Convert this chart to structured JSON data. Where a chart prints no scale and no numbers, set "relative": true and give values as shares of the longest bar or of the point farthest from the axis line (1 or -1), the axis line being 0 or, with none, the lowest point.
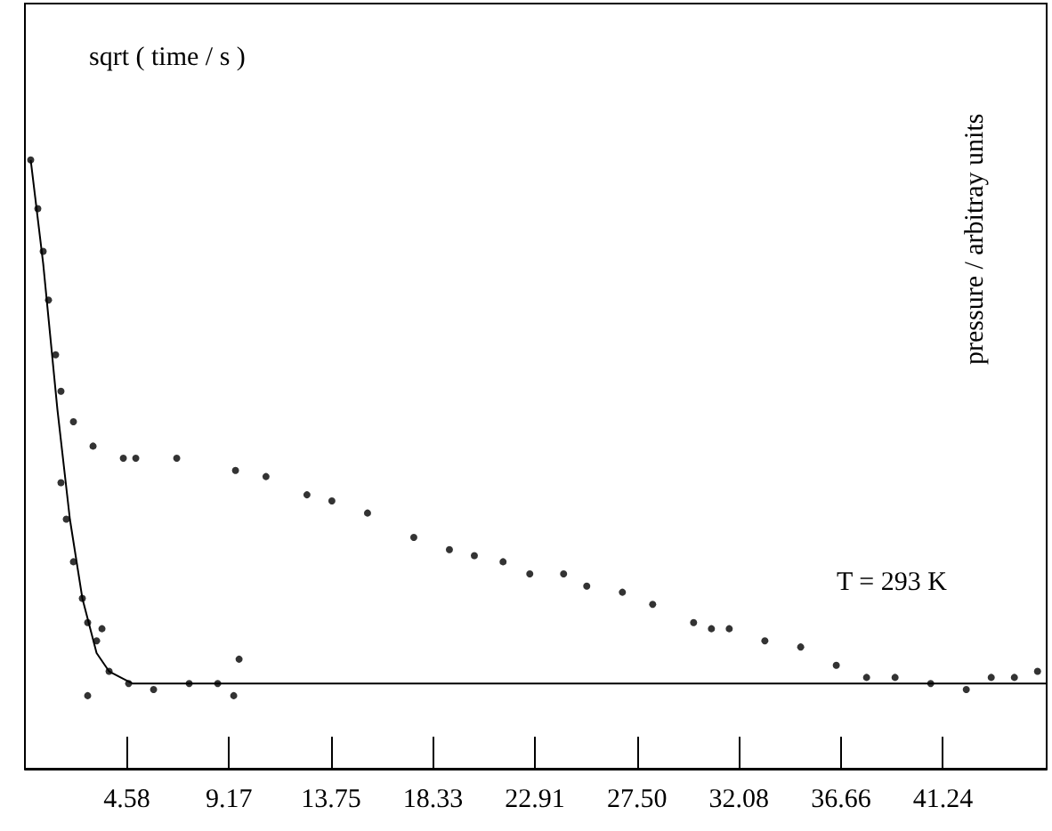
{
  "chart_data": {
    "type": "scatter",
    "relative": true,
    "xlabel": "sqrt ( time / s )",
    "ylabel": "pressure / arbitray units",
    "annotations": [
      "T = 293 K"
    ],
    "xlim": [
      0,
      45.9
    ],
    "xticks": [
      {
        "value": 4.58,
        "label": "4.58"
      },
      {
        "value": 9.17,
        "label": "9.17"
      },
      {
        "value": 13.75,
        "label": "13.75"
      },
      {
        "value": 18.33,
        "label": "18.33"
      },
      {
        "value": 22.91,
        "label": "22.91"
      },
      {
        "value": 27.5,
        "label": "27.50"
      },
      {
        "value": 32.08,
        "label": "32.08"
      },
      {
        "value": 36.66,
        "label": "36.66"
      },
      {
        "value": 41.24,
        "label": "41.24"
      }
    ],
    "tick_labels": "x",
    "marker": "circle",
    "grid": false,
    "series": [
      {
        "color": "#000000",
        "x": [
          0.26,
          0.58,
          0.82,
          1.06,
          1.38,
          1.62,
          2.18,
          3.06,
          4.42,
          4.98,
          6.82,
          9.46,
          10.83,
          12.67,
          13.79,
          15.39,
          17.47,
          19.07,
          20.19,
          21.48,
          22.68,
          24.2,
          25.24,
          26.84,
          28.2,
          30.04,
          30.84,
          31.64,
          33.24,
          34.85,
          36.45,
          37.81,
          39.09,
          40.69,
          42.29,
          43.41,
          44.45,
          45.49
        ],
        "values": [
          1.0,
          0.92,
          0.85,
          0.77,
          0.68,
          0.62,
          0.57,
          0.53,
          0.51,
          0.51,
          0.51,
          0.49,
          0.48,
          0.45,
          0.44,
          0.42,
          0.38,
          0.36,
          0.35,
          0.34,
          0.32,
          0.32,
          0.3,
          0.29,
          0.27,
          0.24,
          0.23,
          0.23,
          0.21,
          0.2,
          0.17,
          0.15,
          0.15,
          0.14,
          0.13,
          0.15,
          0.15,
          0.16
        ]
      },
      {
        "color": "#000000",
        "x": [
          1.62,
          1.86,
          2.18,
          2.58,
          2.82,
          2.82,
          3.22,
          3.46,
          3.78,
          4.66,
          5.78,
          7.38,
          8.66,
          9.38,
          9.62
        ],
        "values": [
          0.47,
          0.41,
          0.34,
          0.28,
          0.24,
          0.12,
          0.21,
          0.23,
          0.16,
          0.14,
          0.13,
          0.14,
          0.14,
          0.12,
          0.18
        ]
      },
      {
        "type": "line",
        "color": "#000000",
        "marker": "none",
        "x": [
          0.26,
          0.82,
          1.46,
          2.02,
          2.58,
          3.22,
          3.78,
          4.82,
          45.9
        ],
        "values": [
          1.0,
          0.83,
          0.59,
          0.41,
          0.28,
          0.19,
          0.16,
          0.14,
          0.14
        ]
      }
    ]
  }
}
